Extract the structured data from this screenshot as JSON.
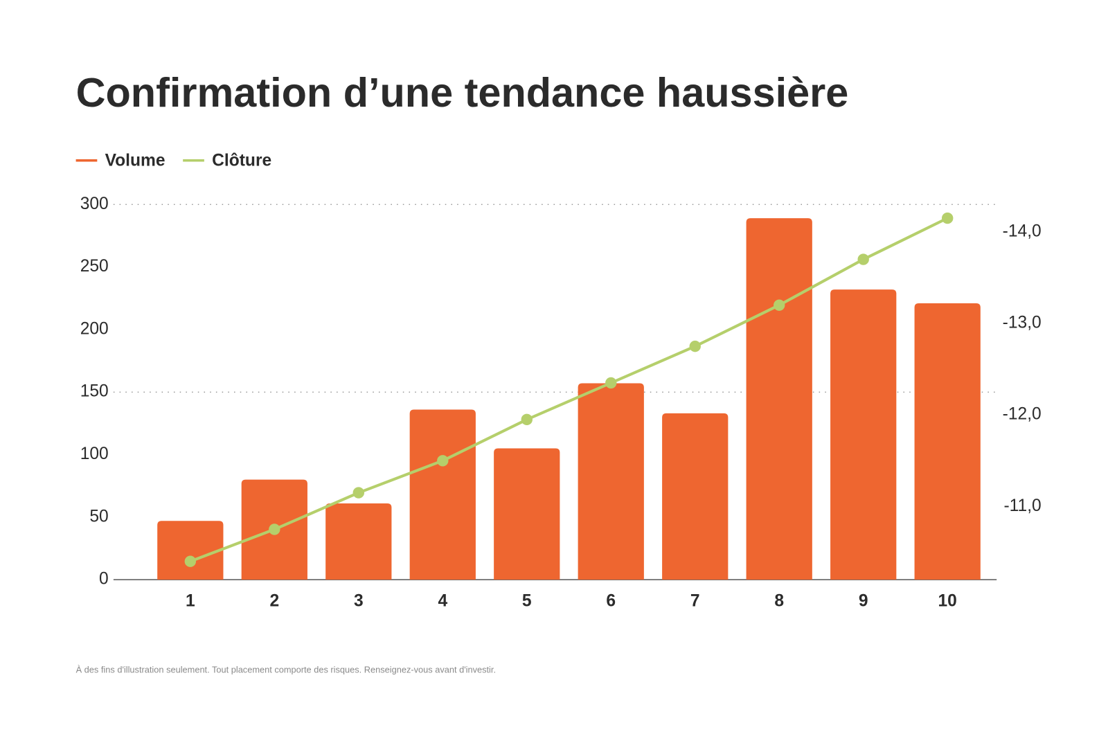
{
  "chart_data": {
    "type": "bar",
    "title": "Confirmation d’une tendance haussière",
    "categories": [
      "1",
      "2",
      "3",
      "4",
      "5",
      "6",
      "7",
      "8",
      "9",
      "10"
    ],
    "series": [
      {
        "name": "Volume",
        "type": "bar",
        "color": "#ee6630",
        "values": [
          47,
          80,
          61,
          136,
          105,
          157,
          133,
          289,
          232,
          221
        ]
      },
      {
        "name": "Clôture",
        "type": "line",
        "axis": "y2",
        "color": "#b5cf6b",
        "values": [
          -10.4,
          -10.75,
          -11.15,
          -11.5,
          -11.95,
          -12.35,
          -12.75,
          -13.2,
          -13.7,
          -14.15
        ]
      }
    ],
    "ylim": [
      0,
      300
    ],
    "yticks": [
      0,
      50,
      100,
      150,
      200,
      250,
      300
    ],
    "y2lim": [
      -10.2,
      -14.3
    ],
    "y2ticks": [
      {
        "value": -11,
        "label": "-11,0"
      },
      {
        "value": -12,
        "label": "-12,0"
      },
      {
        "value": -13,
        "label": "-13,0"
      },
      {
        "value": -14,
        "label": "-14,0"
      }
    ],
    "grid": [
      150,
      300
    ],
    "legend": "top-left",
    "footnote": "À des fins d'illustration seulement. Tout placement comporte des risques. Renseignez-vous avant d'investir."
  }
}
